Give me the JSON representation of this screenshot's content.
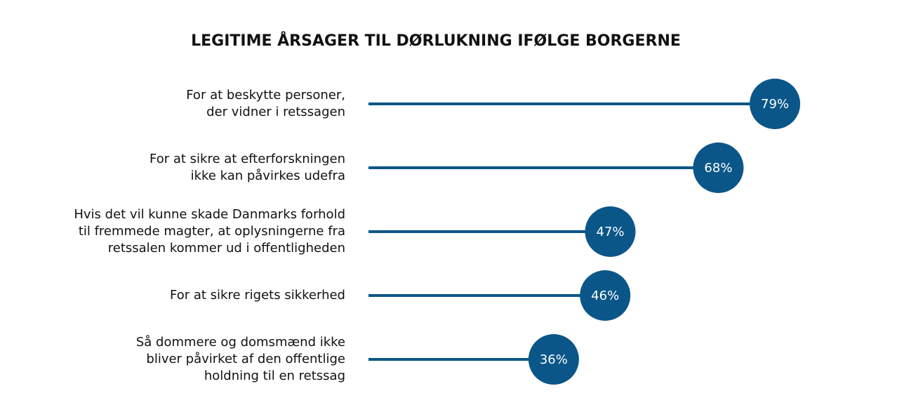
{
  "chart_data": {
    "type": "lollipop",
    "title": "LEGITIME ÅRSAGER TIL DØRLUKNING IFØLGE BORGERNE",
    "categories": [
      "For at beskytte personer,\nder vidner i retssagen",
      "For at sikre at efterforskningen\nikke kan påvirkes udefra",
      "Hvis det vil kunne skade Danmarks forhold\ntil fremmede magter, at oplysningerne fra\nretssalen kommer ud i offentligheden",
      "For at sikre rigets sikkerhed",
      "Så dommere og domsmænd ikke\nbliver påvirket af den offentlige\nholdning til en retssag"
    ],
    "values": [
      79,
      68,
      47,
      46,
      36
    ],
    "value_labels": [
      "79%",
      "68%",
      "47%",
      "46%",
      "36%"
    ],
    "color": "#0b5688",
    "xlim": [
      0,
      100
    ]
  }
}
